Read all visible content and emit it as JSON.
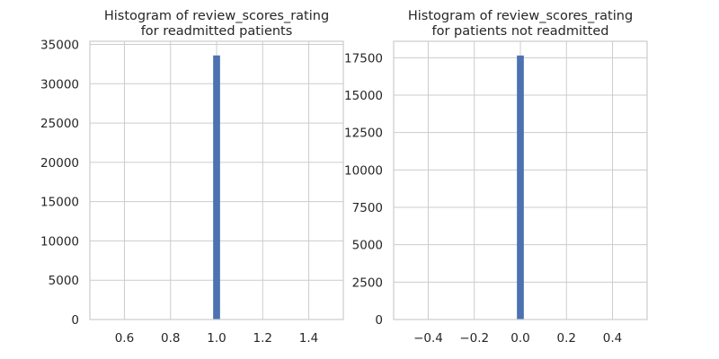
{
  "figure": {
    "background": "#ffffff"
  },
  "chart_data": [
    {
      "type": "bar",
      "title": "Histogram of review_scores_rating\nfor readmitted patients",
      "xlabel": "",
      "ylabel": "",
      "xlim": [
        0.45,
        1.55
      ],
      "ylim": [
        0,
        35400
      ],
      "xticks": [
        0.6,
        0.8,
        1.0,
        1.2,
        1.4
      ],
      "xtick_labels": [
        "0.6",
        "0.8",
        "1.0",
        "1.2",
        "1.4"
      ],
      "yticks": [
        0,
        5000,
        10000,
        15000,
        20000,
        25000,
        30000,
        35000
      ],
      "ytick_labels": [
        "0",
        "5000",
        "10000",
        "15000",
        "20000",
        "25000",
        "30000",
        "35000"
      ],
      "grid": true,
      "color": "#4c72b0",
      "bars": [
        {
          "x0": 0.985,
          "x1": 1.015,
          "value": 33600
        }
      ]
    },
    {
      "type": "bar",
      "title": "Histogram of review_scores_rating\nfor patients not readmitted",
      "xlabel": "",
      "ylabel": "",
      "xlim": [
        -0.55,
        0.55
      ],
      "ylim": [
        0,
        18600
      ],
      "xticks": [
        -0.4,
        -0.2,
        0.0,
        0.2,
        0.4
      ],
      "xtick_labels": [
        "−0.4",
        "−0.2",
        "0.0",
        "0.2",
        "0.4"
      ],
      "yticks": [
        0,
        2500,
        5000,
        7500,
        10000,
        12500,
        15000,
        17500
      ],
      "ytick_labels": [
        "0",
        "2500",
        "5000",
        "7500",
        "10000",
        "12500",
        "15000",
        "17500"
      ],
      "grid": true,
      "color": "#4c72b0",
      "bars": [
        {
          "x0": -0.015,
          "x1": 0.015,
          "value": 17650
        }
      ]
    }
  ]
}
